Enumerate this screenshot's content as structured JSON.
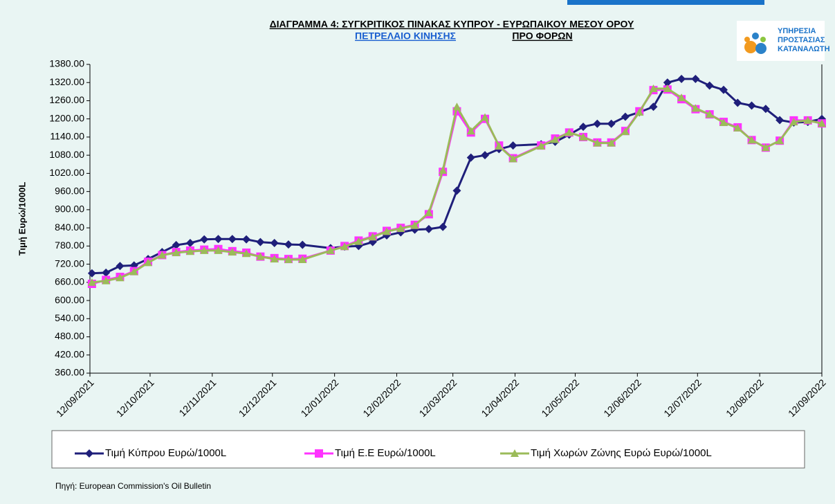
{
  "chart_data": {
    "type": "line",
    "title": "ΔΙΑΓΡΑΜΜΑ 4: ΣΥΓΚΡΙΤΙΚΟΣ ΠΙΝΑΚΑΣ ΚΥΠΡΟΥ - ΕΥΡΩΠΑΙΚΟΥ ΜΕΣΟΥ ΟΡΟΥ",
    "subtitle": [
      "ΠΕΤΡΕΛΑΙΟ ΚΙΝΗΣΗΣ",
      "ΠΡΟ ΦΟΡΩΝ"
    ],
    "y_label": "Τιμή Ευρώ/1000L",
    "source": "Πηγή: European Commission's Oil Bulletin",
    "logo": [
      "ΥΠΗΡΕΣΙΑ",
      "ΠΡΟΣΤΑΣΙΑΣ",
      "ΚΑΤΑΝΑΛΩΤΗ"
    ],
    "x": [
      "13/09/2021",
      "20/09/2021",
      "27/09/2021",
      "04/10/2021",
      "11/10/2021",
      "18/10/2021",
      "25/10/2021",
      "01/11/2021",
      "08/11/2021",
      "15/11/2021",
      "22/11/2021",
      "29/11/2021",
      "06/12/2021",
      "13/12/2021",
      "20/12/2021",
      "27/12/2021",
      "10/01/2022",
      "17/01/2022",
      "24/01/2022",
      "31/01/2022",
      "07/02/2022",
      "14/02/2022",
      "21/02/2022",
      "28/02/2022",
      "07/03/2022",
      "14/03/2022",
      "21/03/2022",
      "28/03/2022",
      "04/04/2022",
      "11/04/2022",
      "25/04/2022",
      "02/05/2022",
      "09/05/2022",
      "16/05/2022",
      "23/05/2022",
      "30/05/2022",
      "06/06/2022",
      "13/06/2022",
      "20/06/2022",
      "27/06/2022",
      "04/07/2022",
      "11/07/2022",
      "18/07/2022",
      "25/07/2022",
      "01/08/2022",
      "08/08/2022",
      "15/08/2022",
      "22/08/2022",
      "29/08/2022",
      "05/09/2022",
      "12/09/2022"
    ],
    "series": [
      {
        "name": "Τιμή Κύπρου Ευρώ/1000L",
        "color": "#1f1f7a",
        "marker": "diamond",
        "values": [
          690,
          692,
          714,
          716,
          737,
          760,
          783,
          790,
          802,
          803,
          803,
          802,
          793,
          790,
          785,
          784,
          773,
          778,
          780,
          793,
          815,
          825,
          834,
          836,
          843,
          963,
          1072,
          1080,
          1100,
          1112,
          1116,
          1124,
          1148,
          1174,
          1184,
          1184,
          1207,
          1222,
          1240,
          1320,
          1332,
          1332,
          1310,
          1296,
          1253,
          1244,
          1233,
          1196,
          1188,
          1190,
          1200
        ]
      },
      {
        "name": "Τιμή Ε.Ε Ευρώ/1000L",
        "color": "#ff33ff",
        "marker": "square",
        "values": [
          655,
          668,
          678,
          697,
          728,
          750,
          760,
          765,
          768,
          770,
          763,
          758,
          745,
          740,
          737,
          738,
          765,
          780,
          798,
          812,
          830,
          840,
          850,
          885,
          1025,
          1225,
          1155,
          1200,
          1112,
          1070,
          1112,
          1135,
          1155,
          1140,
          1122,
          1122,
          1160,
          1225,
          1295,
          1297,
          1265,
          1232,
          1215,
          1190,
          1172,
          1130,
          1105,
          1128,
          1195,
          1195,
          1185
        ]
      },
      {
        "name": "Τιμή Χωρών Ζώνης Ευρώ Ευρώ/1000L",
        "color": "#9bbb59",
        "marker": "triangle",
        "values": [
          660,
          665,
          675,
          695,
          725,
          750,
          758,
          762,
          765,
          765,
          760,
          755,
          745,
          737,
          735,
          735,
          765,
          778,
          795,
          810,
          828,
          838,
          848,
          890,
          1030,
          1240,
          1160,
          1205,
          1110,
          1068,
          1110,
          1132,
          1155,
          1140,
          1120,
          1120,
          1158,
          1222,
          1300,
          1300,
          1270,
          1235,
          1215,
          1188,
          1170,
          1130,
          1105,
          1128,
          1190,
          1195,
          1185
        ]
      }
    ],
    "xlim": [
      "12/09/2021",
      "12/09/2022"
    ],
    "xticks": [
      "12/09/2021",
      "12/10/2021",
      "12/11/2021",
      "12/12/2021",
      "12/01/2022",
      "12/02/2022",
      "12/03/2022",
      "12/04/2022",
      "12/05/2022",
      "12/06/2022",
      "12/07/2022",
      "12/08/2022",
      "12/09/2022"
    ],
    "ylim": [
      360,
      1380
    ],
    "yticks": [
      {
        "value": 360,
        "label": "360.00"
      },
      {
        "value": 420,
        "label": "420.00"
      },
      {
        "value": 480,
        "label": "480.00"
      },
      {
        "value": 540,
        "label": "540.00"
      },
      {
        "value": 600,
        "label": "600.00"
      },
      {
        "value": 660,
        "label": "660.00"
      },
      {
        "value": 720,
        "label": "720.00"
      },
      {
        "value": 780,
        "label": "780.00"
      },
      {
        "value": 840,
        "label": "840.00"
      },
      {
        "value": 900,
        "label": "900.00"
      },
      {
        "value": 960,
        "label": "960.00"
      },
      {
        "value": 1020,
        "label": "1020.00"
      },
      {
        "value": 1080,
        "label": "1080.00"
      },
      {
        "value": 1140,
        "label": "1140.00"
      },
      {
        "value": 1200,
        "label": "1200.00"
      },
      {
        "value": 1260,
        "label": "1260.00"
      },
      {
        "value": 1320,
        "label": "1320.00"
      },
      {
        "value": 1380,
        "label": "1380.00"
      }
    ],
    "legend": "bottom"
  }
}
